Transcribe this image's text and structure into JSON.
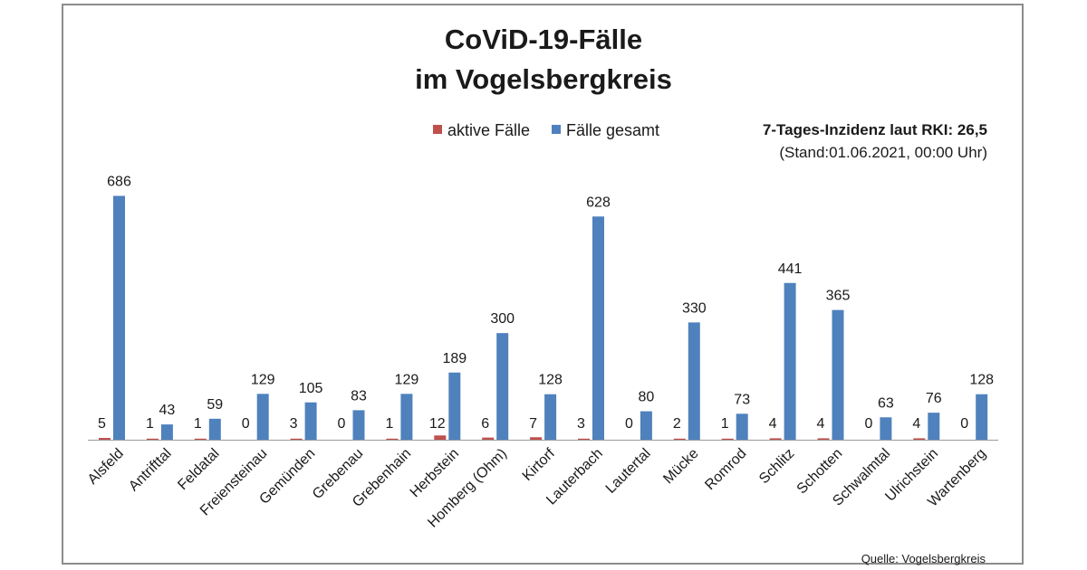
{
  "title_line1": "CoViD-19-Fälle",
  "title_line2": "im Vogelsbergkreis",
  "incidence": "7-Tages-Inzidenz laut RKI: 26,5",
  "stand": "(Stand:01.06.2021, 00:00 Uhr)",
  "source": "Quelle: Vogelsbergkreis",
  "colors": {
    "active": "#c0504d",
    "total": "#4f81bd"
  },
  "chart_data": {
    "type": "bar",
    "categories": [
      "Alsfeld",
      "Antrifttal",
      "Feldatal",
      "Freiensteinau",
      "Gemünden",
      "Grebenau",
      "Grebenhain",
      "Herbstein",
      "Homberg (Ohm)",
      "Kirtorf",
      "Lauterbach",
      "Lautertal",
      "Mücke",
      "Romrod",
      "Schlitz",
      "Schotten",
      "Schwalmtal",
      "Ulrichstein",
      "Wartenberg"
    ],
    "series": [
      {
        "name": "aktive Fälle",
        "values": [
          5,
          1,
          1,
          0,
          3,
          0,
          1,
          12,
          6,
          7,
          3,
          0,
          2,
          1,
          4,
          4,
          0,
          4,
          0
        ]
      },
      {
        "name": "Fälle gesamt",
        "values": [
          686,
          43,
          59,
          129,
          105,
          83,
          129,
          189,
          300,
          128,
          628,
          80,
          330,
          73,
          441,
          365,
          63,
          76,
          128
        ]
      }
    ],
    "ylim": [
      0,
      700
    ],
    "grid": false,
    "legend": "top"
  }
}
